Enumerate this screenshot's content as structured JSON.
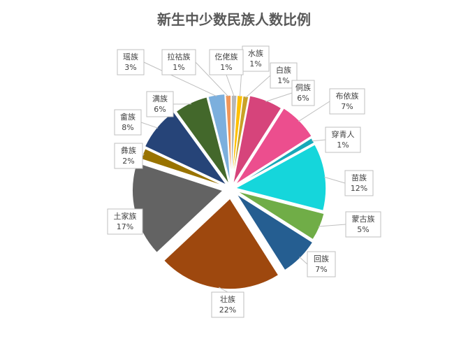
{
  "chart_data": {
    "type": "pie",
    "title": "新生中少数民族人数比例",
    "slices": [
      {
        "name": "水族",
        "value": 1,
        "label": "1%",
        "color": "#FFC000"
      },
      {
        "name": "白族",
        "value": 1,
        "label": "1%",
        "color": "#C9A227"
      },
      {
        "name": "侗族",
        "value": 6,
        "label": "6%",
        "color": "#D6447B"
      },
      {
        "name": "布依族",
        "value": 7,
        "label": "7%",
        "color": "#EC4E8E"
      },
      {
        "name": "穿青人",
        "value": 1,
        "label": "1%",
        "color": "#17A8B8"
      },
      {
        "name": "苗族",
        "value": 12,
        "label": "12%",
        "color": "#15D6DB"
      },
      {
        "name": "蒙古族",
        "value": 5,
        "label": "5%",
        "color": "#70AD47"
      },
      {
        "name": "回族",
        "value": 7,
        "label": "7%",
        "color": "#255E91"
      },
      {
        "name": "壮族",
        "value": 22,
        "label": "22%",
        "color": "#9E480E"
      },
      {
        "name": "土家族",
        "value": 17,
        "label": "17%",
        "color": "#636363"
      },
      {
        "name": "彝族",
        "value": 2,
        "label": "2%",
        "color": "#997300"
      },
      {
        "name": "畲族",
        "value": 8,
        "label": "8%",
        "color": "#264478"
      },
      {
        "name": "满族",
        "value": 6,
        "label": "6%",
        "color": "#43682B"
      },
      {
        "name": "瑶族",
        "value": 3,
        "label": "3%",
        "color": "#7CAFDD"
      },
      {
        "name": "拉祜族",
        "value": 1,
        "label": "1%",
        "color": "#F1975A"
      },
      {
        "name": "仡佬族",
        "value": 1,
        "label": "1%",
        "color": "#B7B7B7"
      }
    ]
  }
}
